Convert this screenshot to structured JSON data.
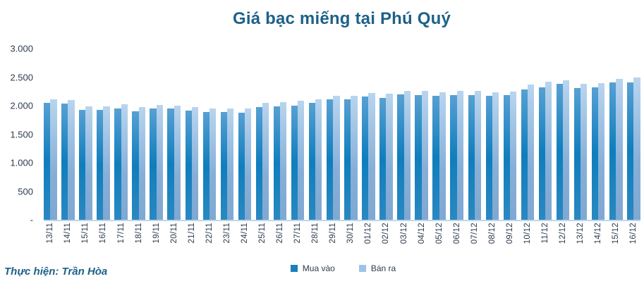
{
  "title": "Giá bạc miếng tại Phú Quý",
  "credit": "Thực hiện: Trần Hòa",
  "legend": {
    "items": [
      {
        "label": "Mua vào",
        "color": "#1A7FBD"
      },
      {
        "label": "Bán ra",
        "color": "#9DC3E6"
      }
    ]
  },
  "colors": {
    "title": "#1E6189",
    "axis_text": "#2D3B4E",
    "baseline": "#BDD7EE",
    "bar_buy": "#0F7EBD",
    "bar_sell": "#9DC3E6"
  },
  "chart_data": {
    "type": "bar",
    "title": "Giá bạc miếng tại Phú Quý",
    "xlabel": "",
    "ylabel": "",
    "ylim": [
      0,
      3000
    ],
    "ytick_interval": 500,
    "ytick_labels": [
      "-",
      "500",
      "1.000",
      "1.500",
      "2.000",
      "2.500",
      "3.000"
    ],
    "grid": false,
    "legend_position": "bottom",
    "categories": [
      "13/11",
      "14/11",
      "15/11",
      "16/11",
      "17/11",
      "18/11",
      "19/11",
      "20/11",
      "21/11",
      "22/11",
      "23/11",
      "24/11",
      "25/11",
      "26/11",
      "27/11",
      "28/11",
      "29/11",
      "30/11",
      "01/12",
      "02/12",
      "03/12",
      "04/12",
      "05/12",
      "06/12",
      "07/12",
      "08/12",
      "09/12",
      "10/12",
      "11/12",
      "12/12",
      "13/12",
      "14/12",
      "15/12",
      "16/12"
    ],
    "series": [
      {
        "name": "Mua vào",
        "values": [
          2050,
          2040,
          1920,
          1920,
          1955,
          1905,
          1950,
          1945,
          1910,
          1890,
          1890,
          1875,
          1975,
          1990,
          2000,
          2045,
          2110,
          2110,
          2160,
          2140,
          2200,
          2190,
          2170,
          2190,
          2190,
          2170,
          2180,
          2290,
          2325,
          2380,
          2315,
          2320,
          2410,
          2410
        ]
      },
      {
        "name": "Bán ra",
        "values": [
          2110,
          2100,
          1990,
          1990,
          2020,
          1970,
          2015,
          2005,
          1975,
          1950,
          1955,
          1945,
          2050,
          2060,
          2085,
          2110,
          2175,
          2175,
          2220,
          2215,
          2265,
          2260,
          2230,
          2260,
          2260,
          2240,
          2250,
          2365,
          2415,
          2450,
          2385,
          2390,
          2470,
          2490
        ]
      }
    ]
  }
}
